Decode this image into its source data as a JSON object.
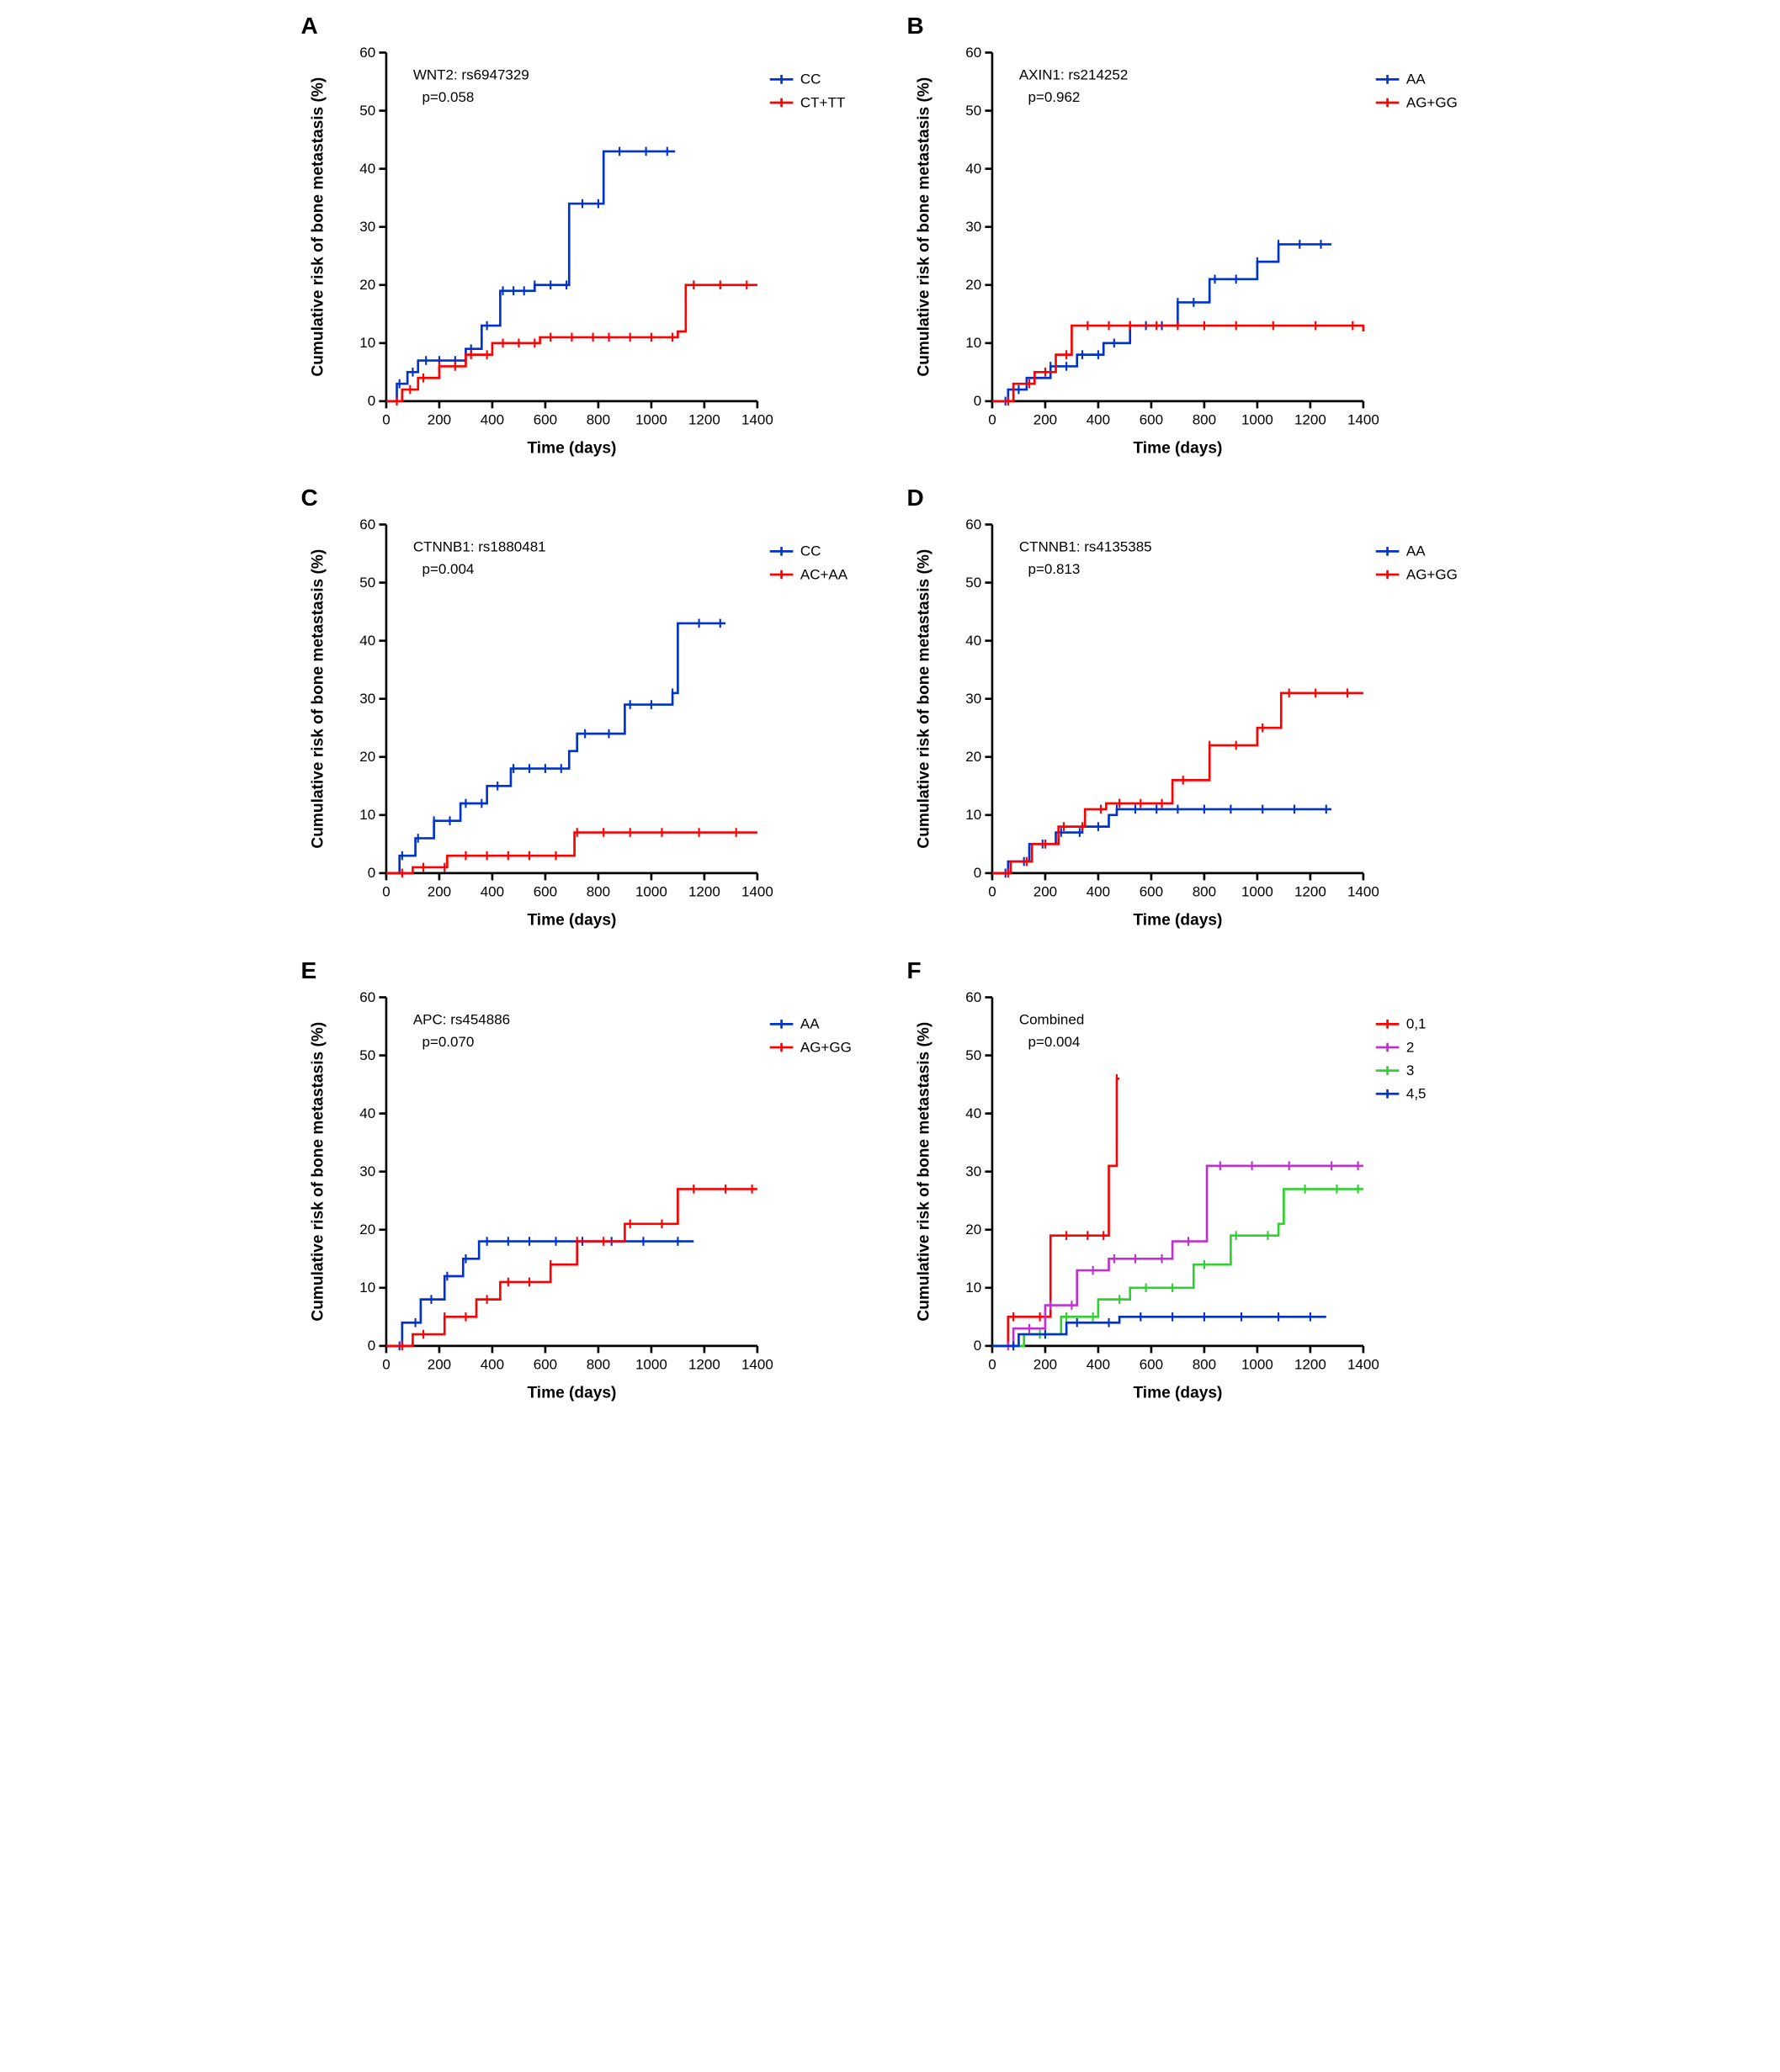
{
  "global": {
    "background_color": "#ffffff",
    "font_family": "Arial",
    "xlabel": "Time (days)",
    "ylabel": "Cumulative risk of bone metastasis (%)",
    "xlim": [
      0,
      1400
    ],
    "ylim": [
      0,
      60
    ],
    "xtick_step": 200,
    "ytick_step": 10,
    "axis_color": "#000000",
    "tick_fontsize": 16,
    "label_fontsize": 18,
    "annot_fontsize": 16,
    "line_width": 2.5,
    "colors": {
      "blue": "#0033cc",
      "red": "#ff0000",
      "purple": "#c030d0",
      "green": "#30d030"
    }
  },
  "panels": [
    {
      "id": "A",
      "title": "WNT2: rs6947329",
      "pvalue": "p=0.058",
      "legend": [
        {
          "label": "CC",
          "color": "#0033cc"
        },
        {
          "label": "CT+TT",
          "color": "#ff0000"
        }
      ],
      "series": [
        {
          "color": "#0033cc",
          "steps": [
            [
              0,
              0
            ],
            [
              40,
              3
            ],
            [
              80,
              5
            ],
            [
              120,
              7
            ],
            [
              200,
              7
            ],
            [
              300,
              9
            ],
            [
              360,
              13
            ],
            [
              430,
              19
            ],
            [
              560,
              20
            ],
            [
              690,
              34
            ],
            [
              820,
              43
            ],
            [
              1090,
              43
            ]
          ],
          "censor_x": [
            50,
            100,
            150,
            200,
            260,
            320,
            380,
            440,
            480,
            520,
            560,
            620,
            680,
            740,
            800,
            880,
            980,
            1060
          ]
        },
        {
          "color": "#ff0000",
          "steps": [
            [
              0,
              0
            ],
            [
              60,
              2
            ],
            [
              120,
              4
            ],
            [
              200,
              6
            ],
            [
              300,
              8
            ],
            [
              400,
              10
            ],
            [
              580,
              11
            ],
            [
              1100,
              12
            ],
            [
              1130,
              20
            ],
            [
              1400,
              20
            ]
          ],
          "censor_x": [
            40,
            90,
            140,
            200,
            260,
            320,
            380,
            440,
            500,
            560,
            620,
            700,
            780,
            840,
            920,
            1000,
            1080,
            1160,
            1260,
            1360
          ]
        }
      ]
    },
    {
      "id": "B",
      "title": "AXIN1: rs214252",
      "pvalue": "p=0.962",
      "legend": [
        {
          "label": "AA",
          "color": "#0033cc"
        },
        {
          "label": "AG+GG",
          "color": "#ff0000"
        }
      ],
      "series": [
        {
          "color": "#0033cc",
          "steps": [
            [
              0,
              0
            ],
            [
              60,
              2
            ],
            [
              130,
              4
            ],
            [
              220,
              6
            ],
            [
              320,
              8
            ],
            [
              420,
              10
            ],
            [
              520,
              13
            ],
            [
              700,
              17
            ],
            [
              820,
              21
            ],
            [
              1000,
              24
            ],
            [
              1080,
              27
            ],
            [
              1280,
              27
            ]
          ],
          "censor_x": [
            50,
            100,
            160,
            220,
            280,
            340,
            400,
            460,
            520,
            580,
            640,
            700,
            760,
            840,
            920,
            1000,
            1080,
            1160,
            1240
          ]
        },
        {
          "color": "#ff0000",
          "steps": [
            [
              0,
              0
            ],
            [
              80,
              3
            ],
            [
              160,
              5
            ],
            [
              240,
              8
            ],
            [
              300,
              13
            ],
            [
              450,
              13
            ],
            [
              1400,
              12
            ]
          ],
          "censor_x": [
            60,
            140,
            200,
            280,
            360,
            440,
            520,
            620,
            700,
            800,
            920,
            1060,
            1220,
            1360
          ]
        }
      ]
    },
    {
      "id": "C",
      "title": "CTNNB1: rs1880481",
      "pvalue": "p=0.004",
      "legend": [
        {
          "label": "CC",
          "color": "#0033cc"
        },
        {
          "label": "AC+AA",
          "color": "#ff0000"
        }
      ],
      "series": [
        {
          "color": "#0033cc",
          "steps": [
            [
              0,
              0
            ],
            [
              50,
              3
            ],
            [
              110,
              6
            ],
            [
              180,
              9
            ],
            [
              280,
              12
            ],
            [
              380,
              15
            ],
            [
              470,
              18
            ],
            [
              690,
              21
            ],
            [
              720,
              24
            ],
            [
              900,
              29
            ],
            [
              1080,
              31
            ],
            [
              1100,
              43
            ],
            [
              1280,
              43
            ]
          ],
          "censor_x": [
            60,
            120,
            180,
            240,
            300,
            360,
            420,
            480,
            540,
            600,
            660,
            750,
            840,
            920,
            1000,
            1080,
            1180,
            1260
          ]
        },
        {
          "color": "#ff0000",
          "steps": [
            [
              0,
              0
            ],
            [
              100,
              1
            ],
            [
              230,
              3
            ],
            [
              460,
              3
            ],
            [
              710,
              7
            ],
            [
              1400,
              7
            ]
          ],
          "censor_x": [
            60,
            140,
            220,
            300,
            380,
            460,
            540,
            640,
            720,
            820,
            920,
            1040,
            1180,
            1320
          ]
        }
      ]
    },
    {
      "id": "D",
      "title": "CTNNB1: rs4135385",
      "pvalue": "p=0.813",
      "legend": [
        {
          "label": "AA",
          "color": "#0033cc"
        },
        {
          "label": "AG+GG",
          "color": "#ff0000"
        }
      ],
      "series": [
        {
          "color": "#0033cc",
          "steps": [
            [
              0,
              0
            ],
            [
              60,
              2
            ],
            [
              140,
              5
            ],
            [
              240,
              7
            ],
            [
              340,
              8
            ],
            [
              440,
              10
            ],
            [
              470,
              11
            ],
            [
              1280,
              11
            ]
          ],
          "censor_x": [
            50,
            120,
            190,
            260,
            330,
            400,
            470,
            540,
            620,
            700,
            800,
            900,
            1020,
            1140,
            1260
          ]
        },
        {
          "color": "#ff0000",
          "steps": [
            [
              0,
              0
            ],
            [
              70,
              2
            ],
            [
              150,
              5
            ],
            [
              250,
              8
            ],
            [
              350,
              11
            ],
            [
              430,
              12
            ],
            [
              680,
              16
            ],
            [
              820,
              22
            ],
            [
              1000,
              25
            ],
            [
              1090,
              31
            ],
            [
              1400,
              31
            ]
          ],
          "censor_x": [
            60,
            130,
            200,
            270,
            340,
            410,
            480,
            560,
            640,
            720,
            820,
            920,
            1020,
            1120,
            1220,
            1340
          ]
        }
      ]
    },
    {
      "id": "E",
      "title": "APC: rs454886",
      "pvalue": "p=0.070",
      "legend": [
        {
          "label": "AA",
          "color": "#0033cc"
        },
        {
          "label": "AG+GG",
          "color": "#ff0000"
        }
      ],
      "series": [
        {
          "color": "#0033cc",
          "steps": [
            [
              0,
              0
            ],
            [
              60,
              4
            ],
            [
              130,
              8
            ],
            [
              220,
              12
            ],
            [
              290,
              15
            ],
            [
              350,
              18
            ],
            [
              1160,
              18
            ]
          ],
          "censor_x": [
            50,
            110,
            170,
            230,
            300,
            380,
            460,
            540,
            640,
            740,
            850,
            970,
            1100
          ]
        },
        {
          "color": "#ff0000",
          "steps": [
            [
              0,
              0
            ],
            [
              100,
              2
            ],
            [
              220,
              5
            ],
            [
              340,
              8
            ],
            [
              430,
              11
            ],
            [
              620,
              14
            ],
            [
              720,
              18
            ],
            [
              900,
              21
            ],
            [
              1100,
              27
            ],
            [
              1400,
              27
            ]
          ],
          "censor_x": [
            60,
            140,
            220,
            300,
            380,
            460,
            540,
            620,
            720,
            820,
            920,
            1040,
            1160,
            1280,
            1380
          ]
        }
      ]
    },
    {
      "id": "F",
      "title": "Combined",
      "pvalue": "p=0.004",
      "legend": [
        {
          "label": "0,1",
          "color": "#ff0000"
        },
        {
          "label": "2",
          "color": "#c030d0"
        },
        {
          "label": "3",
          "color": "#30d030"
        },
        {
          "label": "4,5",
          "color": "#0033cc"
        }
      ],
      "series": [
        {
          "color": "#ff0000",
          "steps": [
            [
              0,
              0
            ],
            [
              60,
              5
            ],
            [
              220,
              19
            ],
            [
              350,
              19
            ],
            [
              440,
              31
            ],
            [
              470,
              46
            ],
            [
              480,
              46
            ]
          ],
          "censor_x": [
            80,
            180,
            280,
            360,
            420,
            470
          ]
        },
        {
          "color": "#c030d0",
          "steps": [
            [
              0,
              0
            ],
            [
              80,
              3
            ],
            [
              200,
              7
            ],
            [
              320,
              13
            ],
            [
              440,
              15
            ],
            [
              680,
              18
            ],
            [
              810,
              31
            ],
            [
              1400,
              31
            ]
          ],
          "censor_x": [
            60,
            140,
            220,
            300,
            380,
            460,
            540,
            640,
            740,
            860,
            980,
            1120,
            1280,
            1380
          ]
        },
        {
          "color": "#30d030",
          "steps": [
            [
              0,
              0
            ],
            [
              120,
              2
            ],
            [
              260,
              5
            ],
            [
              400,
              8
            ],
            [
              520,
              10
            ],
            [
              760,
              14
            ],
            [
              900,
              19
            ],
            [
              1080,
              21
            ],
            [
              1100,
              27
            ],
            [
              1400,
              27
            ]
          ],
          "censor_x": [
            80,
            180,
            280,
            380,
            480,
            580,
            680,
            800,
            920,
            1040,
            1180,
            1300,
            1380
          ]
        },
        {
          "color": "#0033cc",
          "steps": [
            [
              0,
              0
            ],
            [
              100,
              2
            ],
            [
              280,
              4
            ],
            [
              480,
              5
            ],
            [
              1260,
              5
            ]
          ],
          "censor_x": [
            80,
            200,
            320,
            440,
            560,
            680,
            800,
            940,
            1080,
            1200
          ]
        }
      ]
    }
  ]
}
